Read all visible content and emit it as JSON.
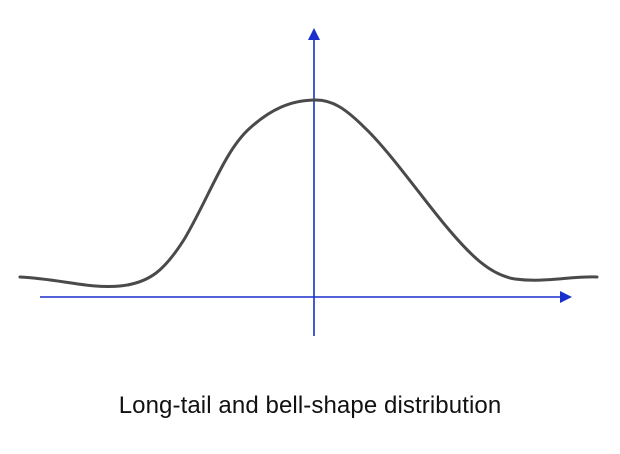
{
  "caption": "Long-tail and bell-shape distribution",
  "colors": {
    "axis": "#1a2fcc",
    "curve": "#4a4a4a",
    "caption": "#111111",
    "background": "#ffffff"
  }
}
